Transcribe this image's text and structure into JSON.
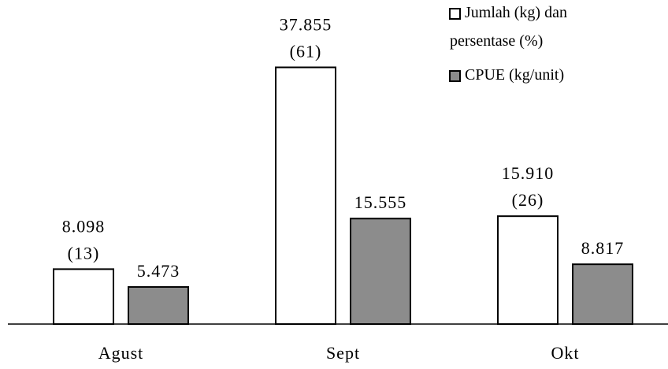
{
  "chart_data": {
    "type": "bar",
    "title": "",
    "xlabel": "",
    "ylabel": "",
    "categories": [
      "Agust",
      "Sept",
      "Okt"
    ],
    "series": [
      {
        "name": "Jumlah (kg) dan persentase (%)",
        "values": [
          8098,
          37855,
          15910
        ],
        "labels": [
          "8.098",
          "37.855",
          "15.910"
        ],
        "percent_labels": [
          "(13)",
          "(61)",
          "(26)"
        ],
        "color": "#ffffff"
      },
      {
        "name": "CPUE (kg/unit)",
        "values": [
          5473,
          15555,
          8817
        ],
        "labels": [
          "5.473",
          "15.555",
          "8.817"
        ],
        "color": "#8c8c8c"
      }
    ],
    "legend": {
      "placement": "top-right",
      "entries": [
        {
          "line1": "Jumlah (kg) dan",
          "line2": "persentase (%)"
        },
        {
          "line1": "CPUE (kg/unit)"
        }
      ]
    },
    "ylim": [
      0,
      40000
    ],
    "grid": false,
    "axis_visible": false
  }
}
